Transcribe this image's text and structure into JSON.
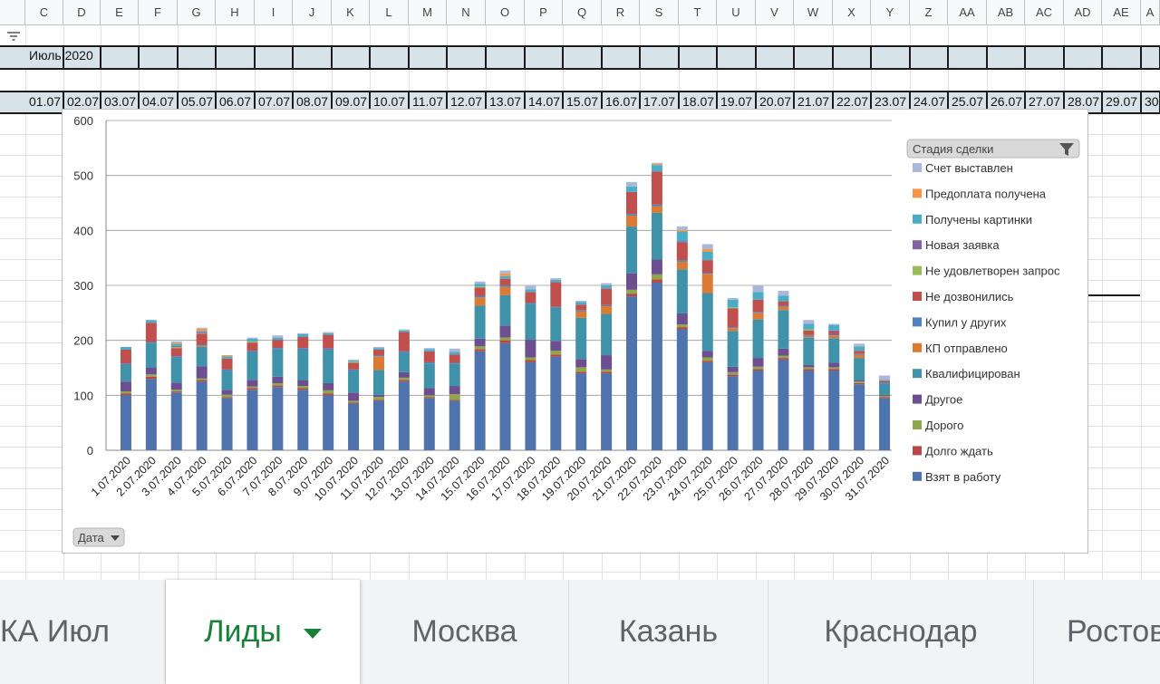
{
  "sheet": {
    "columns": [
      "C",
      "D",
      "E",
      "F",
      "G",
      "H",
      "I",
      "J",
      "K",
      "L",
      "M",
      "N",
      "O",
      "P",
      "Q",
      "R",
      "S",
      "T",
      "U",
      "V",
      "W",
      "X",
      "Y",
      "Z",
      "AA",
      "AB",
      "AC",
      "AD",
      "AE",
      "A"
    ],
    "month_label": "Июль 2020",
    "dates": [
      "01.07",
      "02.07",
      "03.07",
      "04.07",
      "05.07",
      "06.07",
      "07.07",
      "08.07",
      "09.07",
      "10.07",
      "11.07",
      "12.07",
      "13.07",
      "14.07",
      "15.07",
      "16.07",
      "17.07",
      "18.07",
      "19.07",
      "20.07",
      "21.07",
      "22.07",
      "23.07",
      "24.07",
      "25.07",
      "26.07",
      "27.07",
      "28.07",
      "29.07",
      "30"
    ]
  },
  "chart_data": {
    "type": "bar",
    "stacked": true,
    "ylim": [
      0,
      600
    ],
    "yticks": [
      0,
      100,
      200,
      300,
      400,
      500,
      600
    ],
    "grid": true,
    "legend_position": "right",
    "legend_title": "Стадия сделки",
    "filter_button_label": "Дата",
    "categories": [
      "1.07.2020",
      "2.07.2020",
      "3.07.2020",
      "4.07.2020",
      "5.07.2020",
      "6.07.2020",
      "7.07.2020",
      "8.07.2020",
      "9.07.2020",
      "10.07.2020",
      "11.07.2020",
      "12.07.2020",
      "13.07.2020",
      "14.07.2020",
      "15.07.2020",
      "16.07.2020",
      "17.07.2020",
      "18.07.2020",
      "19.07.2020",
      "20.07.2020",
      "21.07.2020",
      "22.07.2020",
      "23.07.2020",
      "24.07.2020",
      "25.07.2020",
      "26.07.2020",
      "27.07.2020",
      "28.07.2020",
      "29.07.2020",
      "30.07.2020",
      "31.07.2020"
    ],
    "series": [
      {
        "name": "Взят в работу",
        "color": "#4e73ad",
        "values": [
          100,
          130,
          105,
          125,
          95,
          110,
          115,
          110,
          100,
          85,
          90,
          125,
          95,
          90,
          180,
          195,
          160,
          170,
          140,
          140,
          280,
          305,
          220,
          160,
          135,
          145,
          165,
          145,
          145,
          120,
          95
        ]
      },
      {
        "name": "Долго ждать",
        "color": "#b84745",
        "values": [
          3,
          4,
          2,
          3,
          2,
          3,
          3,
          3,
          3,
          2,
          2,
          3,
          2,
          2,
          4,
          5,
          4,
          4,
          3,
          3,
          5,
          6,
          4,
          3,
          3,
          3,
          3,
          3,
          3,
          2,
          2
        ]
      },
      {
        "name": "Дорого",
        "color": "#8ca84b",
        "values": [
          4,
          4,
          3,
          3,
          4,
          3,
          4,
          4,
          6,
          3,
          5,
          4,
          3,
          10,
          5,
          5,
          5,
          7,
          8,
          4,
          7,
          9,
          5,
          6,
          4,
          4,
          4,
          3,
          3,
          3,
          2
        ]
      },
      {
        "name": "Другое",
        "color": "#6b4f90",
        "values": [
          18,
          12,
          13,
          22,
          9,
          12,
          12,
          11,
          13,
          15,
          4,
          10,
          13,
          15,
          14,
          22,
          32,
          18,
          15,
          26,
          30,
          27,
          20,
          12,
          10,
          16,
          13,
          4,
          8,
          3,
          2
        ]
      },
      {
        "name": "Квалифицирован",
        "color": "#3f92a8",
        "values": [
          30,
          45,
          45,
          35,
          35,
          50,
          50,
          55,
          60,
          40,
          45,
          35,
          45,
          40,
          60,
          55,
          65,
          60,
          75,
          75,
          85,
          85,
          80,
          105,
          65,
          70,
          70,
          50,
          45,
          40,
          20
        ]
      },
      {
        "name": "КП отправлено",
        "color": "#db7b33",
        "values": [
          0,
          0,
          0,
          2,
          0,
          0,
          0,
          0,
          0,
          0,
          25,
          0,
          0,
          0,
          15,
          15,
          0,
          0,
          12,
          14,
          20,
          12,
          14,
          35,
          5,
          12,
          6,
          3,
          5,
          6,
          0
        ]
      },
      {
        "name": "Купил у других",
        "color": "#4f81bd",
        "values": [
          3,
          2,
          3,
          2,
          2,
          3,
          2,
          3,
          3,
          2,
          2,
          3,
          2,
          2,
          3,
          3,
          2,
          2,
          2,
          2,
          3,
          3,
          3,
          2,
          2,
          2,
          2,
          2,
          2,
          2,
          2
        ]
      },
      {
        "name": "Не дозвонились",
        "color": "#c0504d",
        "values": [
          25,
          35,
          15,
          20,
          20,
          15,
          15,
          20,
          25,
          12,
          10,
          35,
          20,
          15,
          15,
          12,
          20,
          45,
          10,
          30,
          40,
          60,
          32,
          23,
          34,
          22,
          8,
          8,
          5,
          5,
          3
        ]
      },
      {
        "name": "Не удовлетворен запрос",
        "color": "#9bbb59",
        "values": [
          0,
          0,
          2,
          1,
          0,
          2,
          0,
          0,
          0,
          2,
          0,
          0,
          0,
          0,
          2,
          0,
          0,
          0,
          0,
          0,
          0,
          0,
          0,
          0,
          2,
          0,
          0,
          2,
          0,
          0,
          0
        ]
      },
      {
        "name": "Новая заявка",
        "color": "#8064a2",
        "values": [
          0,
          0,
          2,
          2,
          0,
          0,
          0,
          0,
          0,
          0,
          0,
          0,
          0,
          0,
          0,
          0,
          0,
          0,
          0,
          0,
          0,
          0,
          2,
          0,
          0,
          0,
          0,
          0,
          2,
          0,
          0
        ]
      },
      {
        "name": "Получены картинки",
        "color": "#4bacc6",
        "values": [
          5,
          5,
          4,
          2,
          4,
          5,
          4,
          5,
          3,
          2,
          3,
          3,
          4,
          5,
          5,
          5,
          5,
          4,
          5,
          6,
          10,
          12,
          18,
          15,
          14,
          14,
          10,
          10,
          10,
          8,
          2
        ]
      },
      {
        "name": "Предоплата получена",
        "color": "#f79646",
        "values": [
          0,
          0,
          2,
          4,
          2,
          0,
          0,
          0,
          0,
          0,
          0,
          0,
          0,
          0,
          0,
          5,
          0,
          0,
          0,
          0,
          0,
          2,
          3,
          5,
          0,
          0,
          0,
          0,
          0,
          0,
          0
        ]
      },
      {
        "name": "Счет выставлен",
        "color": "#a9b7d8",
        "values": [
          0,
          0,
          2,
          2,
          0,
          2,
          4,
          2,
          2,
          2,
          2,
          2,
          2,
          6,
          4,
          5,
          6,
          3,
          2,
          4,
          8,
          2,
          6,
          9,
          3,
          12,
          9,
          7,
          2,
          5,
          8
        ]
      }
    ]
  },
  "tabs": [
    {
      "label": "КА Июл"
    },
    {
      "label": "Лиды",
      "active": true
    },
    {
      "label": "Москва"
    },
    {
      "label": "Казань"
    },
    {
      "label": "Краснодар"
    },
    {
      "label": "Ростов"
    }
  ],
  "colors": {
    "active_tab": "#188038",
    "header_fill": "#d7e3e8"
  }
}
